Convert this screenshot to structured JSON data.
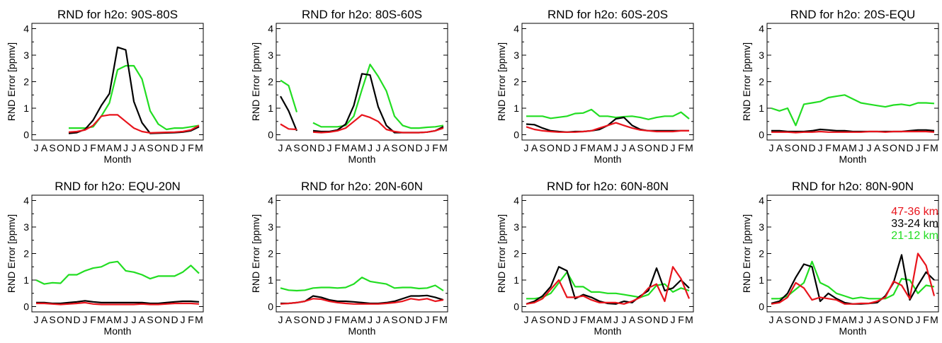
{
  "colors": {
    "47-36 km": "#e8141c",
    "33-24 km": "#000000",
    "21-12 km": "#22dd22"
  },
  "chart_data": [
    {
      "type": "line",
      "title": "RND for h2o: 90S-80S",
      "xlabel": "Month",
      "ylabel": "RND Error [ppmv]",
      "categories": [
        "J",
        "A",
        "S",
        "O",
        "N",
        "D",
        "J",
        "F",
        "M",
        "A",
        "M",
        "J",
        "J",
        "A",
        "S",
        "O",
        "N",
        "D",
        "J",
        "F",
        "M"
      ],
      "ylim": [
        -0.2,
        4.2
      ],
      "yticks": [
        0,
        1,
        2,
        3,
        4
      ],
      "series": [
        {
          "name": "47-36 km",
          "values": [
            0.3,
            null,
            0.05,
            null,
            0.1,
            0.12,
            0.18,
            0.35,
            0.7,
            0.75,
            0.75,
            0.5,
            0.25,
            0.12,
            0.07,
            0.08,
            0.09,
            0.1,
            0.12,
            0.18,
            0.35
          ]
        },
        {
          "name": "33-24 km",
          "values": [
            0.3,
            null,
            0.1,
            null,
            0.05,
            0.08,
            0.2,
            0.55,
            1.1,
            1.55,
            3.3,
            3.2,
            1.25,
            0.45,
            0.05,
            0.06,
            0.07,
            0.08,
            0.1,
            0.15,
            0.3
          ]
        },
        {
          "name": "21-12 km",
          "values": [
            0.3,
            null,
            0.3,
            null,
            0.25,
            0.25,
            0.25,
            0.3,
            0.7,
            1.2,
            2.45,
            2.6,
            2.6,
            2.1,
            0.9,
            0.4,
            0.2,
            0.25,
            0.25,
            0.3,
            0.35
          ]
        }
      ]
    },
    {
      "type": "line",
      "title": "RND for h2o: 80S-60S",
      "xlabel": "Month",
      "ylabel": "RND Error [ppmv]",
      "categories": [
        "J",
        "A",
        "S",
        "O",
        "N",
        "D",
        "J",
        "F",
        "M",
        "A",
        "M",
        "J",
        "J",
        "A",
        "S",
        "O",
        "N",
        "D",
        "J",
        "F",
        "M"
      ],
      "ylim": [
        -0.2,
        4.2
      ],
      "yticks": [
        0,
        1,
        2,
        3,
        4
      ],
      "series": [
        {
          "name": "47-36 km",
          "values": [
            0.4,
            0.22,
            0.2,
            null,
            0.1,
            0.08,
            0.1,
            0.15,
            0.25,
            0.5,
            0.75,
            0.65,
            0.5,
            0.2,
            0.12,
            0.08,
            0.08,
            0.08,
            0.1,
            0.15,
            0.25
          ]
        },
        {
          "name": "33-24 km",
          "values": [
            1.45,
            0.9,
            0.15,
            null,
            0.15,
            0.12,
            0.12,
            0.18,
            0.4,
            1.1,
            2.3,
            2.25,
            1.05,
            0.35,
            0.08,
            0.08,
            0.08,
            0.08,
            0.1,
            0.15,
            0.3
          ]
        },
        {
          "name": "21-12 km",
          "values": [
            2.05,
            1.85,
            0.85,
            null,
            0.45,
            0.3,
            0.3,
            0.3,
            0.35,
            0.7,
            1.7,
            2.65,
            2.2,
            1.65,
            0.7,
            0.35,
            0.25,
            0.25,
            0.28,
            0.3,
            0.35
          ]
        }
      ]
    },
    {
      "type": "line",
      "title": "RND for h2o: 60S-20S",
      "xlabel": "Month",
      "ylabel": "RND Error [ppmv]",
      "categories": [
        "J",
        "A",
        "S",
        "O",
        "N",
        "D",
        "J",
        "F",
        "M",
        "A",
        "M",
        "J",
        "J",
        "A",
        "S",
        "O",
        "N",
        "D",
        "J",
        "F",
        "M"
      ],
      "ylim": [
        -0.2,
        4.2
      ],
      "yticks": [
        0,
        1,
        2,
        3,
        4
      ],
      "series": [
        {
          "name": "47-36 km",
          "values": [
            0.3,
            0.2,
            0.15,
            0.12,
            0.1,
            0.1,
            0.1,
            0.12,
            0.15,
            0.25,
            0.35,
            0.45,
            0.35,
            0.25,
            0.18,
            0.15,
            0.12,
            0.12,
            0.12,
            0.15,
            0.15
          ]
        },
        {
          "name": "33-24 km",
          "values": [
            0.4,
            0.38,
            0.25,
            0.15,
            0.12,
            0.1,
            0.12,
            0.12,
            0.15,
            0.2,
            0.35,
            0.6,
            0.65,
            0.35,
            0.2,
            0.15,
            0.15,
            0.15,
            0.15,
            0.15,
            0.15
          ]
        },
        {
          "name": "21-12 km",
          "values": [
            0.7,
            0.7,
            0.7,
            0.62,
            0.66,
            0.7,
            0.8,
            0.82,
            0.95,
            0.7,
            0.7,
            0.65,
            0.68,
            0.7,
            0.65,
            0.58,
            0.65,
            0.7,
            0.7,
            0.85,
            0.6
          ]
        }
      ]
    },
    {
      "type": "line",
      "title": "RND for h2o: 20S-EQU",
      "xlabel": "Month",
      "ylabel": "RND Error [ppmv]",
      "categories": [
        "J",
        "A",
        "S",
        "O",
        "N",
        "D",
        "J",
        "F",
        "M",
        "A",
        "M",
        "J",
        "J",
        "A",
        "S",
        "O",
        "N",
        "D",
        "J",
        "F",
        "M"
      ],
      "ylim": [
        -0.2,
        4.2
      ],
      "yticks": [
        0,
        1,
        2,
        3,
        4
      ],
      "series": [
        {
          "name": "47-36 km",
          "values": [
            0.1,
            0.1,
            0.1,
            0.08,
            0.1,
            0.1,
            0.12,
            0.1,
            0.1,
            0.1,
            0.1,
            0.1,
            0.12,
            0.12,
            0.1,
            0.12,
            0.12,
            0.12,
            0.12,
            0.12,
            0.1
          ]
        },
        {
          "name": "33-24 km",
          "values": [
            0.15,
            0.15,
            0.12,
            0.12,
            0.12,
            0.15,
            0.2,
            0.18,
            0.15,
            0.15,
            0.12,
            0.12,
            0.12,
            0.12,
            0.12,
            0.12,
            0.12,
            0.15,
            0.18,
            0.18,
            0.15
          ]
        },
        {
          "name": "21-12 km",
          "values": [
            1.0,
            0.9,
            1.0,
            0.35,
            1.15,
            1.2,
            1.25,
            1.4,
            1.45,
            1.5,
            1.35,
            1.2,
            1.15,
            1.1,
            1.05,
            1.12,
            1.15,
            1.1,
            1.2,
            1.2,
            1.18
          ]
        }
      ]
    },
    {
      "type": "line",
      "title": "RND for h2o: EQU-20N",
      "xlabel": "Month",
      "ylabel": "RND Error [ppmv]",
      "categories": [
        "J",
        "A",
        "S",
        "O",
        "N",
        "D",
        "J",
        "F",
        "M",
        "A",
        "M",
        "J",
        "J",
        "A",
        "S",
        "O",
        "N",
        "D",
        "J",
        "F",
        "M"
      ],
      "ylim": [
        -0.2,
        4.2
      ],
      "yticks": [
        0,
        1,
        2,
        3,
        4
      ],
      "series": [
        {
          "name": "47-36 km",
          "values": [
            0.12,
            0.12,
            0.1,
            0.08,
            0.1,
            0.12,
            0.15,
            0.1,
            0.08,
            0.08,
            0.08,
            0.08,
            0.08,
            0.1,
            0.08,
            0.08,
            0.1,
            0.12,
            0.12,
            0.12,
            0.1
          ]
        },
        {
          "name": "33-24 km",
          "values": [
            0.15,
            0.15,
            0.12,
            0.12,
            0.15,
            0.18,
            0.22,
            0.18,
            0.15,
            0.15,
            0.15,
            0.15,
            0.15,
            0.15,
            0.12,
            0.12,
            0.15,
            0.18,
            0.2,
            0.2,
            0.18
          ]
        },
        {
          "name": "21-12 km",
          "values": [
            1.0,
            0.85,
            0.9,
            0.88,
            1.2,
            1.2,
            1.35,
            1.45,
            1.5,
            1.65,
            1.7,
            1.35,
            1.3,
            1.2,
            1.05,
            1.15,
            1.15,
            1.15,
            1.3,
            1.55,
            1.25
          ]
        }
      ]
    },
    {
      "type": "line",
      "title": "RND for h2o: 20N-60N",
      "xlabel": "Month",
      "ylabel": "RND Error [ppmv]",
      "categories": [
        "J",
        "A",
        "S",
        "O",
        "N",
        "D",
        "J",
        "F",
        "M",
        "A",
        "M",
        "J",
        "J",
        "A",
        "S",
        "O",
        "N",
        "D",
        "J",
        "F",
        "M"
      ],
      "ylim": [
        -0.2,
        4.2
      ],
      "yticks": [
        0,
        1,
        2,
        3,
        4
      ],
      "series": [
        {
          "name": "47-36 km",
          "values": [
            0.1,
            0.12,
            0.15,
            0.2,
            0.3,
            0.28,
            0.2,
            0.15,
            0.12,
            0.1,
            0.1,
            0.1,
            0.1,
            0.12,
            0.15,
            0.2,
            0.3,
            0.25,
            0.3,
            0.2,
            0.25
          ]
        },
        {
          "name": "33-24 km",
          "values": [
            0.12,
            0.12,
            0.15,
            0.2,
            0.4,
            0.35,
            0.25,
            0.2,
            0.2,
            0.18,
            0.15,
            0.12,
            0.12,
            0.15,
            0.2,
            0.3,
            0.4,
            0.4,
            0.42,
            0.35,
            0.25
          ]
        },
        {
          "name": "21-12 km",
          "values": [
            0.7,
            0.62,
            0.6,
            0.62,
            0.7,
            0.72,
            0.72,
            0.7,
            0.72,
            0.85,
            1.1,
            0.95,
            0.9,
            0.85,
            0.7,
            0.72,
            0.72,
            0.68,
            0.7,
            0.8,
            0.6
          ]
        }
      ]
    },
    {
      "type": "line",
      "title": "RND for h2o: 60N-80N",
      "xlabel": "Month",
      "ylabel": "RND Error [ppmv]",
      "categories": [
        "J",
        "A",
        "S",
        "O",
        "N",
        "D",
        "J",
        "F",
        "M",
        "A",
        "M",
        "J",
        "J",
        "A",
        "S",
        "O",
        "N",
        "D",
        "J",
        "F",
        "M"
      ],
      "ylim": [
        -0.2,
        4.2
      ],
      "yticks": [
        0,
        1,
        2,
        3,
        4
      ],
      "series": [
        {
          "name": "47-36 km",
          "values": [
            0.1,
            0.15,
            0.3,
            0.65,
            1.0,
            0.35,
            0.35,
            0.4,
            0.25,
            0.15,
            0.15,
            0.15,
            0.1,
            0.2,
            0.35,
            0.7,
            0.85,
            0.2,
            1.5,
            1.05,
            0.3
          ]
        },
        {
          "name": "33-24 km",
          "values": [
            0.1,
            0.2,
            0.4,
            0.75,
            1.5,
            1.35,
            0.3,
            0.45,
            0.35,
            0.2,
            0.12,
            0.1,
            0.2,
            0.15,
            0.4,
            0.6,
            1.45,
            0.6,
            0.7,
            1.0,
            0.7
          ]
        },
        {
          "name": "21-12 km",
          "values": [
            0.3,
            0.3,
            0.35,
            0.5,
            0.9,
            1.3,
            0.75,
            0.75,
            0.55,
            0.55,
            0.5,
            0.5,
            0.45,
            0.4,
            0.35,
            0.45,
            0.8,
            0.85,
            0.55,
            0.7,
            0.6
          ]
        }
      ]
    },
    {
      "type": "line",
      "title": "RND for h2o: 80N-90N",
      "xlabel": "Month",
      "ylabel": "RND Error [ppmv]",
      "categories": [
        "J",
        "A",
        "S",
        "O",
        "N",
        "D",
        "J",
        "F",
        "M",
        "A",
        "M",
        "J",
        "J",
        "A",
        "S",
        "O",
        "N",
        "D",
        "J",
        "F",
        "M"
      ],
      "ylim": [
        -0.2,
        4.2
      ],
      "yticks": [
        0,
        1,
        2,
        3,
        4
      ],
      "legend": {
        "position": "top-right",
        "entries": [
          "47-36 km",
          "33-24 km",
          "21-12 km"
        ]
      },
      "series": [
        {
          "name": "47-36 km",
          "values": [
            0.1,
            0.15,
            0.35,
            0.9,
            0.7,
            0.25,
            0.35,
            0.3,
            0.25,
            0.1,
            0.1,
            0.12,
            0.12,
            0.2,
            0.35,
            0.95,
            0.8,
            0.3,
            2.0,
            1.55,
            0.4
          ]
        },
        {
          "name": "33-24 km",
          "values": [
            0.12,
            0.2,
            0.5,
            1.1,
            1.6,
            1.5,
            0.2,
            0.5,
            0.3,
            0.15,
            0.1,
            0.1,
            0.12,
            0.15,
            0.4,
            0.9,
            1.95,
            0.25,
            0.8,
            1.3,
            1.0
          ]
        },
        {
          "name": "21-12 km",
          "values": [
            0.3,
            0.3,
            0.4,
            0.65,
            0.9,
            1.7,
            0.9,
            0.75,
            0.5,
            0.4,
            0.3,
            0.35,
            0.3,
            0.3,
            0.3,
            0.45,
            1.05,
            1.0,
            0.5,
            0.8,
            0.75
          ]
        }
      ]
    }
  ]
}
